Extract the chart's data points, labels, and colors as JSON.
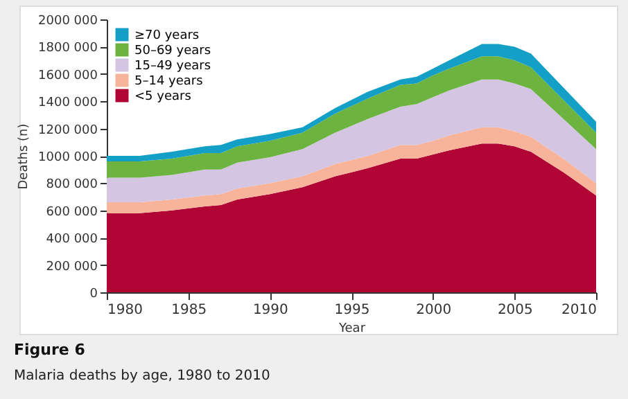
{
  "chart_data": {
    "type": "area",
    "title": "Figure 6",
    "subtitle": "Malaria deaths by age, 1980 to 2010",
    "xlabel": "Year",
    "ylabel": "Deaths (n)",
    "stacked": true,
    "legend": "top left",
    "grid": false,
    "x": [
      1980,
      1982,
      1984,
      1986,
      1987,
      1988,
      1990,
      1992,
      1994,
      1996,
      1998,
      1999,
      2000,
      2001,
      2003,
      2004,
      2005,
      2006,
      2008,
      2010
    ],
    "xlim": [
      1980,
      2010
    ],
    "xticks": [
      1980,
      1985,
      1990,
      1995,
      2000,
      2005,
      2010
    ],
    "ylim": [
      0,
      2000000
    ],
    "yticks": [
      {
        "value": 0,
        "label": "0"
      },
      {
        "value": 200000,
        "label": "200 000"
      },
      {
        "value": 400000,
        "label": "400 000"
      },
      {
        "value": 600000,
        "label": "600 000"
      },
      {
        "value": 800000,
        "label": "800 000"
      },
      {
        "value": 1000000,
        "label": "1000 000"
      },
      {
        "value": 1200000,
        "label": "1200 000"
      },
      {
        "value": 1400000,
        "label": "1400 000"
      },
      {
        "value": 1600000,
        "label": "1600 000"
      },
      {
        "value": 1800000,
        "label": "1800 000"
      },
      {
        "value": 2000000,
        "label": "2000 000"
      }
    ],
    "series": [
      {
        "name": "<5 years",
        "color": "#b00535",
        "values": [
          580000,
          580000,
          600000,
          630000,
          640000,
          680000,
          720000,
          770000,
          850000,
          910000,
          980000,
          980000,
          1010000,
          1040000,
          1090000,
          1090000,
          1070000,
          1030000,
          880000,
          710000
        ]
      },
      {
        "name": "5–14 years",
        "color": "#f7b49a",
        "values": [
          80000,
          80000,
          80000,
          80000,
          80000,
          80000,
          80000,
          80000,
          90000,
          90000,
          100000,
          100000,
          100000,
          110000,
          120000,
          120000,
          110000,
          110000,
          100000,
          90000
        ]
      },
      {
        "name": "15–49 years",
        "color": "#d4c5e2",
        "values": [
          180000,
          180000,
          180000,
          190000,
          180000,
          190000,
          190000,
          200000,
          230000,
          270000,
          280000,
          300000,
          320000,
          330000,
          350000,
          350000,
          350000,
          350000,
          290000,
          250000
        ]
      },
      {
        "name": "50–69 years",
        "color": "#6db33f",
        "values": [
          120000,
          120000,
          120000,
          120000,
          120000,
          120000,
          120000,
          120000,
          140000,
          150000,
          160000,
          150000,
          160000,
          160000,
          170000,
          170000,
          170000,
          160000,
          140000,
          120000
        ]
      },
      {
        "name": "≥70 years",
        "color": "#139fc6",
        "values": [
          40000,
          40000,
          50000,
          50000,
          60000,
          50000,
          50000,
          40000,
          40000,
          50000,
          40000,
          50000,
          50000,
          60000,
          90000,
          90000,
          100000,
          100000,
          90000,
          80000
        ]
      }
    ]
  }
}
